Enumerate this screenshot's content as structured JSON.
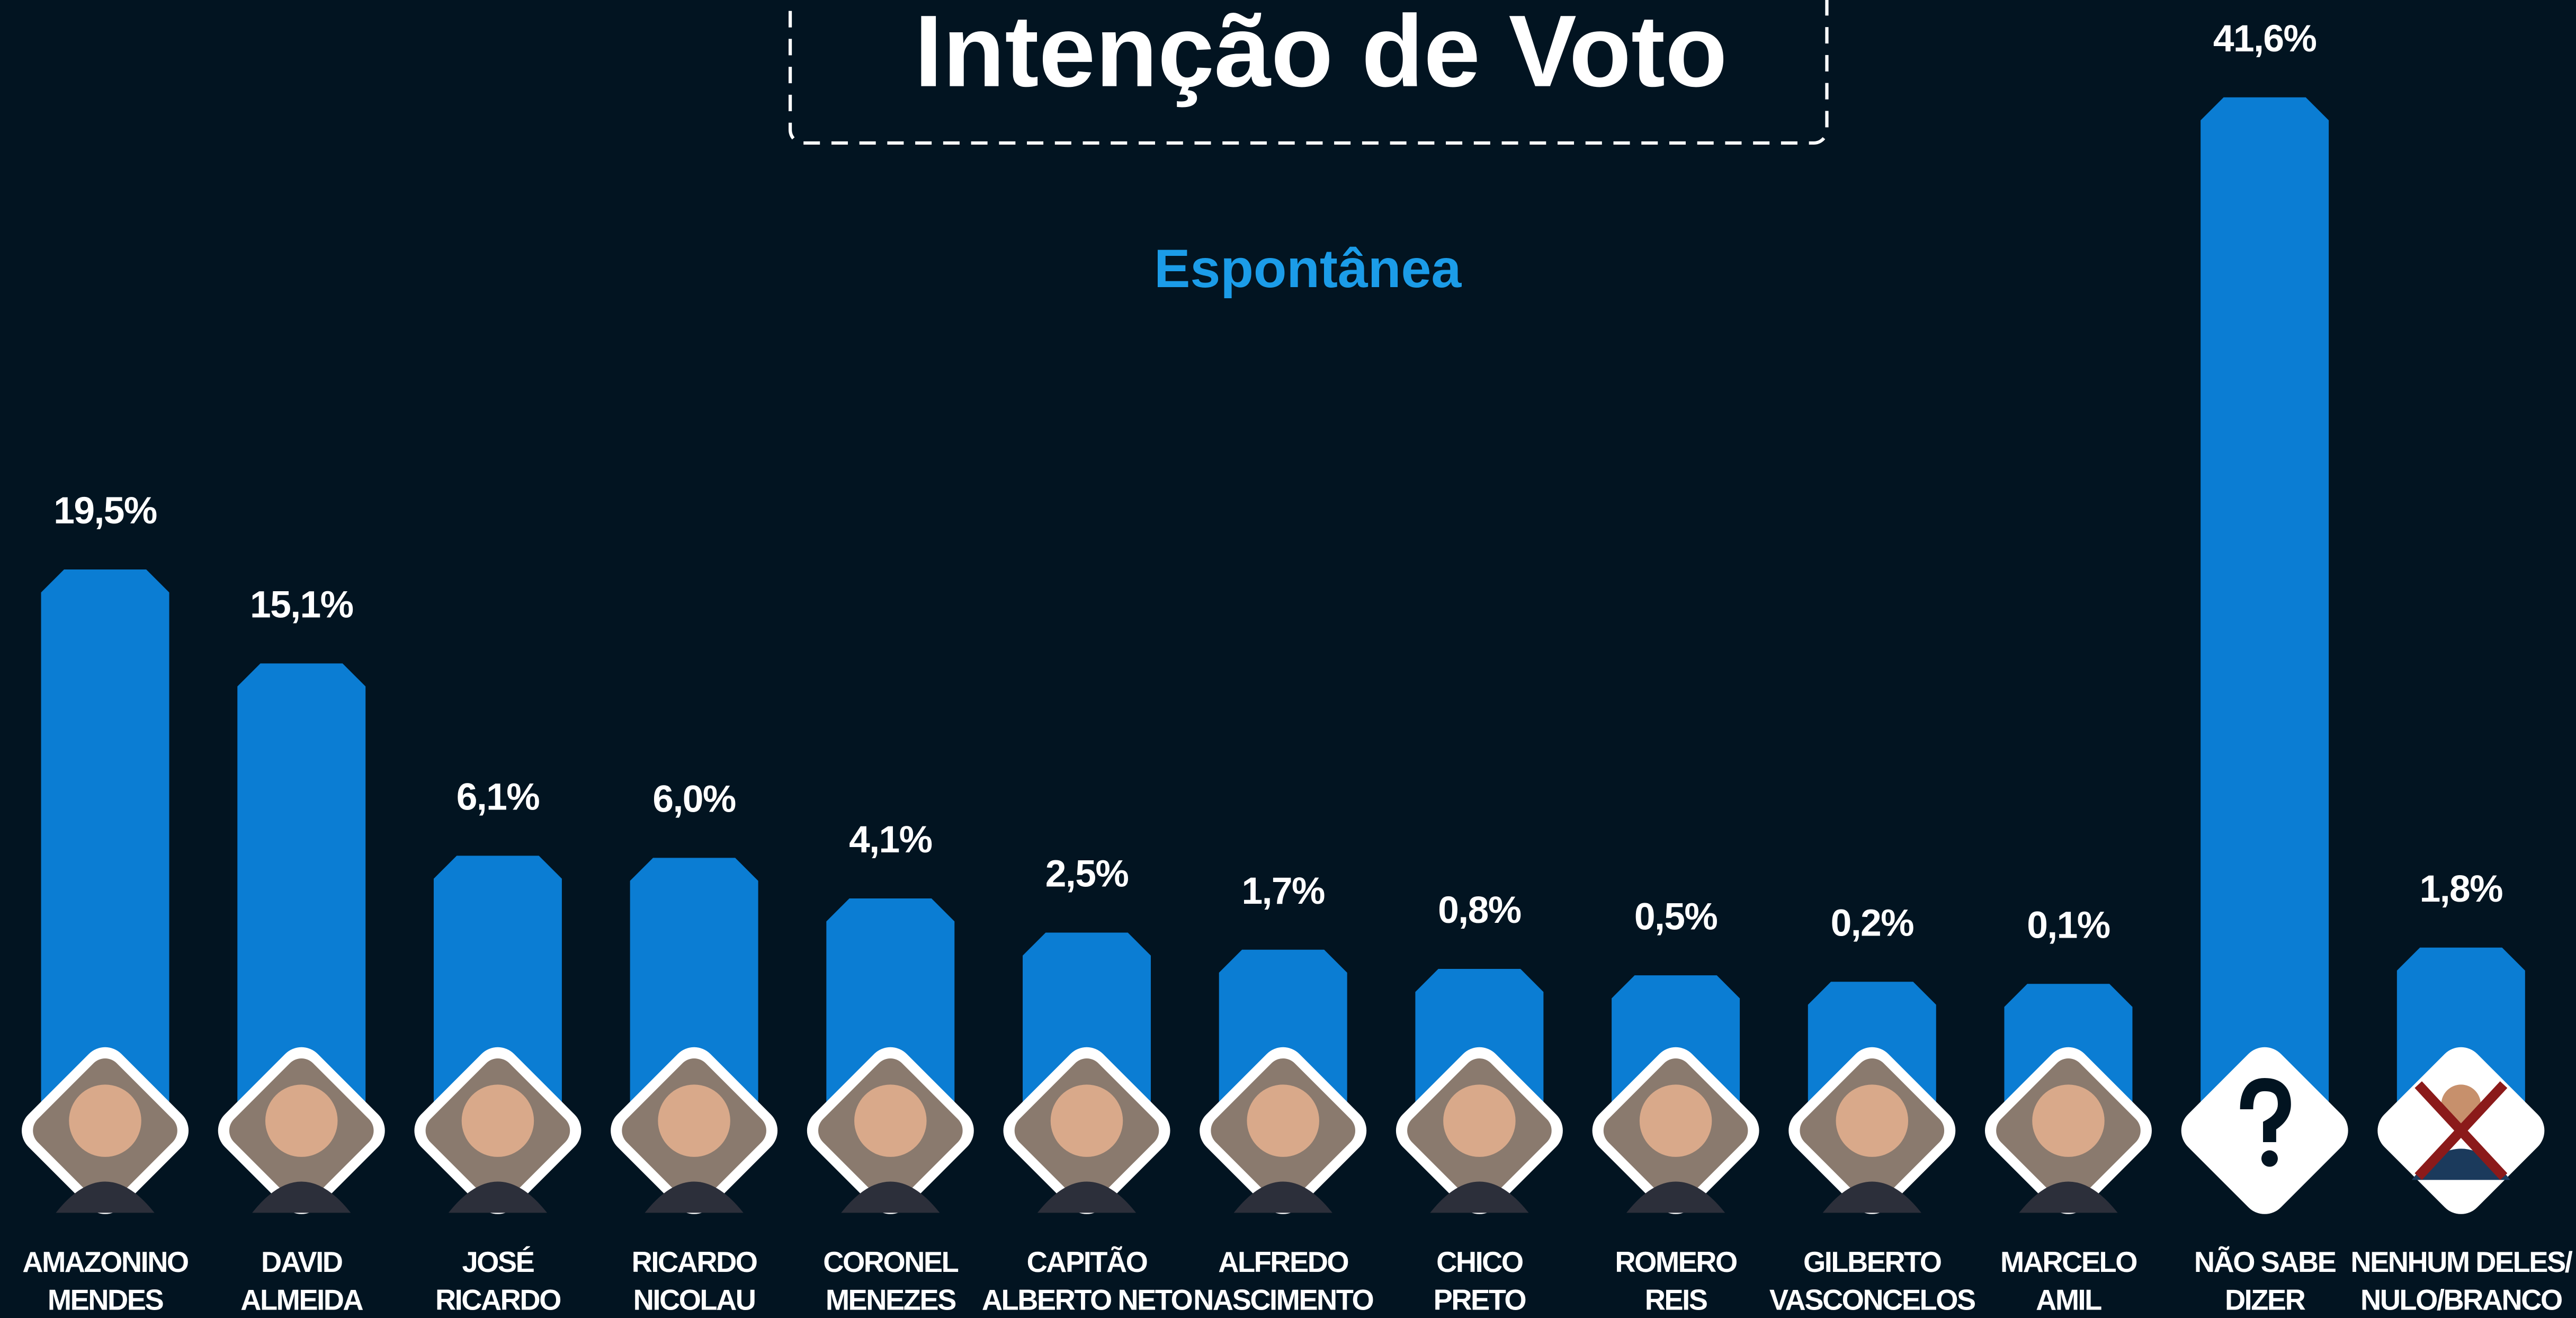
{
  "chart_data": {
    "type": "bar",
    "title": "Intenção de Voto",
    "subtitle": "Espontânea",
    "categories": [
      "AMAZONINO\nMENDES",
      "DAVID\nALMEIDA",
      "JOSÉ\nRICARDO",
      "RICARDO\nNICOLAU",
      "CORONEL\nMENEZES",
      "CAPITÃO\nALBERTO NETO",
      "ALFREDO\nNASCIMENTO",
      "CHICO\nPRETO",
      "ROMERO\nREIS",
      "GILBERTO\nVASCONCELOS",
      "MARCELO\nAMIL",
      "NÃO SABE\nDIZER",
      "NENHUM DELES/\nNULO/BRANCO"
    ],
    "values": [
      19.5,
      15.1,
      6.1,
      6.0,
      4.1,
      2.5,
      1.7,
      0.8,
      0.5,
      0.2,
      0.1,
      41.6,
      1.8
    ],
    "value_labels": [
      "19,5%",
      "15,1%",
      "6,1%",
      "6,0%",
      "4,1%",
      "2,5%",
      "1,7%",
      "0,8%",
      "0,5%",
      "0,2%",
      "0,1%",
      "41,6%",
      "1,8%"
    ],
    "color": "#0b7dd3",
    "ylim": [
      0,
      45
    ]
  }
}
